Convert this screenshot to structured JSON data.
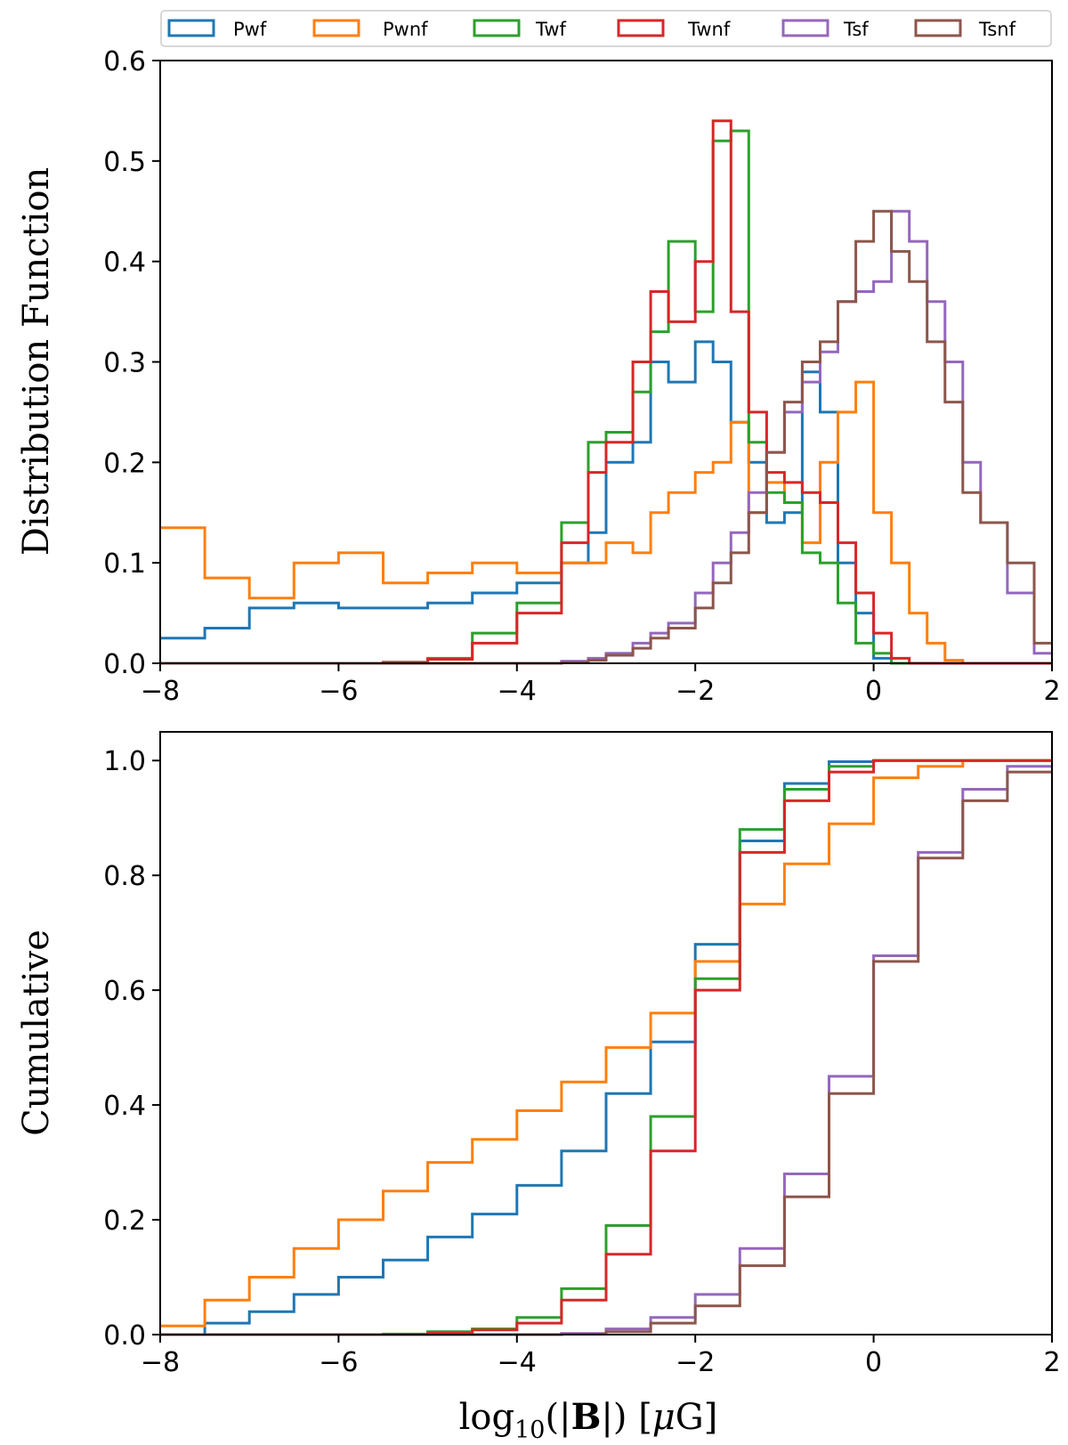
{
  "figure": {
    "legend": [
      {
        "name": "Pwf",
        "color": "#1f77b4"
      },
      {
        "name": "Pwnf",
        "color": "#ff7f0e"
      },
      {
        "name": "Twf",
        "color": "#2ca02c"
      },
      {
        "name": "Twnf",
        "color": "#d62728"
      },
      {
        "name": "Tsf",
        "color": "#9467bd"
      },
      {
        "name": "Tsnf",
        "color": "#8c564b"
      }
    ],
    "xlabel_pre": "log",
    "xlabel_sub": "10",
    "xlabel_open": "(|",
    "xlabel_bold": "B",
    "xlabel_close": "|) [",
    "xlabel_mu": "μ",
    "xlabel_unit": "G]"
  },
  "chart_data": [
    {
      "type": "line",
      "style": "step-histogram",
      "ylabel": "Distribution Function",
      "xlabel": "",
      "xlim": [
        -8,
        2
      ],
      "ylim": [
        0,
        0.6
      ],
      "xticks": [
        -8,
        -6,
        -4,
        -2,
        0,
        2
      ],
      "xtick_labels": [
        "−8",
        "−6",
        "−4",
        "−2",
        "0",
        "2"
      ],
      "yticks": [
        0,
        0.1,
        0.2,
        0.3,
        0.4,
        0.5,
        0.6
      ],
      "ytick_labels": [
        "0.0",
        "0.1",
        "0.2",
        "0.3",
        "0.4",
        "0.5",
        "0.6"
      ],
      "x": [
        -8.0,
        -7.5,
        -7.0,
        -6.5,
        -6.0,
        -5.5,
        -5.0,
        -4.5,
        -4.0,
        -3.5,
        -3.2,
        -3.0,
        -2.7,
        -2.5,
        -2.3,
        -2.0,
        -1.8,
        -1.6,
        -1.4,
        -1.2,
        -1.0,
        -0.8,
        -0.6,
        -0.4,
        -0.2,
        0.0,
        0.2,
        0.4,
        0.6,
        0.8,
        1.0,
        1.2,
        1.5,
        1.8,
        2.0
      ],
      "series": [
        {
          "name": "Pwf",
          "color": "#1f77b4",
          "values": [
            0.025,
            0.035,
            0.055,
            0.06,
            0.055,
            0.055,
            0.06,
            0.07,
            0.08,
            0.1,
            0.13,
            0.2,
            0.22,
            0.3,
            0.28,
            0.32,
            0.3,
            0.24,
            0.2,
            0.14,
            0.15,
            0.29,
            0.25,
            0.1,
            0.05,
            0.005,
            0.0,
            0.0,
            0.0,
            0.0,
            0.0,
            0.0,
            0.0,
            0.0,
            0.0
          ]
        },
        {
          "name": "Pwnf",
          "color": "#ff7f0e",
          "values": [
            0.135,
            0.085,
            0.065,
            0.1,
            0.11,
            0.08,
            0.09,
            0.1,
            0.09,
            0.1,
            0.1,
            0.12,
            0.11,
            0.15,
            0.17,
            0.19,
            0.2,
            0.24,
            0.15,
            0.18,
            0.16,
            0.12,
            0.2,
            0.25,
            0.28,
            0.15,
            0.1,
            0.05,
            0.02,
            0.003,
            0.0,
            0.0,
            0.0,
            0.0,
            0.0
          ]
        },
        {
          "name": "Twf",
          "color": "#2ca02c",
          "values": [
            0.0,
            0.0,
            0.0,
            0.0,
            0.0,
            0.001,
            0.005,
            0.03,
            0.06,
            0.14,
            0.22,
            0.23,
            0.27,
            0.33,
            0.42,
            0.35,
            0.52,
            0.53,
            0.22,
            0.17,
            0.16,
            0.11,
            0.1,
            0.06,
            0.02,
            0.01,
            0.0,
            0.0,
            0.0,
            0.0,
            0.0,
            0.0,
            0.0,
            0.0,
            0.0
          ]
        },
        {
          "name": "Twnf",
          "color": "#d62728",
          "values": [
            0.0,
            0.0,
            0.0,
            0.0,
            0.0,
            0.001,
            0.004,
            0.02,
            0.05,
            0.12,
            0.19,
            0.22,
            0.3,
            0.37,
            0.34,
            0.4,
            0.54,
            0.35,
            0.25,
            0.19,
            0.18,
            0.17,
            0.16,
            0.12,
            0.07,
            0.03,
            0.005,
            0.0,
            0.0,
            0.0,
            0.0,
            0.0,
            0.0,
            0.0,
            0.0
          ]
        },
        {
          "name": "Tsf",
          "color": "#9467bd",
          "values": [
            0.0,
            0.0,
            0.0,
            0.0,
            0.0,
            0.0,
            0.0,
            0.0,
            0.0,
            0.002,
            0.005,
            0.01,
            0.02,
            0.03,
            0.04,
            0.07,
            0.1,
            0.13,
            0.17,
            0.21,
            0.25,
            0.28,
            0.31,
            0.36,
            0.37,
            0.38,
            0.45,
            0.42,
            0.36,
            0.3,
            0.2,
            0.14,
            0.07,
            0.01,
            0.0
          ]
        },
        {
          "name": "Tsnf",
          "color": "#8c564b",
          "values": [
            0.0,
            0.0,
            0.0,
            0.0,
            0.0,
            0.0,
            0.0,
            0.0,
            0.0,
            0.001,
            0.003,
            0.008,
            0.015,
            0.025,
            0.035,
            0.055,
            0.08,
            0.11,
            0.15,
            0.21,
            0.26,
            0.3,
            0.32,
            0.36,
            0.42,
            0.45,
            0.41,
            0.38,
            0.32,
            0.26,
            0.17,
            0.14,
            0.1,
            0.02,
            0.0
          ]
        }
      ]
    },
    {
      "type": "line",
      "style": "step-cumulative",
      "ylabel": "Cumulative",
      "xlabel": "log10(|B|) [μG]",
      "xlim": [
        -8,
        2
      ],
      "ylim": [
        0,
        1.05
      ],
      "xticks": [
        -8,
        -6,
        -4,
        -2,
        0,
        2
      ],
      "xtick_labels": [
        "−8",
        "−6",
        "−4",
        "−2",
        "0",
        "2"
      ],
      "yticks": [
        0,
        0.2,
        0.4,
        0.6,
        0.8,
        1.0
      ],
      "ytick_labels": [
        "0.0",
        "0.2",
        "0.4",
        "0.6",
        "0.8",
        "1.0"
      ],
      "x": [
        -8.0,
        -7.5,
        -7.0,
        -6.5,
        -6.0,
        -5.5,
        -5.0,
        -4.5,
        -4.0,
        -3.5,
        -3.0,
        -2.5,
        -2.0,
        -1.5,
        -1.0,
        -0.5,
        0.0,
        0.5,
        1.0,
        1.5,
        2.0
      ],
      "series": [
        {
          "name": "Pwf",
          "color": "#1f77b4",
          "values": [
            0.0,
            0.02,
            0.04,
            0.07,
            0.1,
            0.13,
            0.17,
            0.21,
            0.26,
            0.32,
            0.42,
            0.51,
            0.68,
            0.86,
            0.96,
            0.998,
            1.0,
            1.0,
            1.0,
            1.0,
            1.0
          ]
        },
        {
          "name": "Pwnf",
          "color": "#ff7f0e",
          "values": [
            0.015,
            0.06,
            0.1,
            0.15,
            0.2,
            0.25,
            0.3,
            0.34,
            0.39,
            0.44,
            0.5,
            0.56,
            0.65,
            0.75,
            0.82,
            0.89,
            0.97,
            0.99,
            1.0,
            1.0,
            1.0
          ]
        },
        {
          "name": "Twf",
          "color": "#2ca02c",
          "values": [
            0.0,
            0.0,
            0.0,
            0.0,
            0.0,
            0.001,
            0.005,
            0.01,
            0.03,
            0.08,
            0.19,
            0.38,
            0.62,
            0.88,
            0.95,
            0.99,
            1.0,
            1.0,
            1.0,
            1.0,
            1.0
          ]
        },
        {
          "name": "Twnf",
          "color": "#d62728",
          "values": [
            0.0,
            0.0,
            0.0,
            0.0,
            0.0,
            0.0,
            0.003,
            0.008,
            0.02,
            0.06,
            0.14,
            0.32,
            0.6,
            0.84,
            0.93,
            0.98,
            1.0,
            1.0,
            1.0,
            1.0,
            1.0
          ]
        },
        {
          "name": "Tsf",
          "color": "#9467bd",
          "values": [
            0.0,
            0.0,
            0.0,
            0.0,
            0.0,
            0.0,
            0.0,
            0.0,
            0.0,
            0.002,
            0.01,
            0.03,
            0.07,
            0.15,
            0.28,
            0.45,
            0.66,
            0.84,
            0.95,
            0.99,
            1.0
          ]
        },
        {
          "name": "Tsnf",
          "color": "#8c564b",
          "values": [
            0.0,
            0.0,
            0.0,
            0.0,
            0.0,
            0.0,
            0.0,
            0.0,
            0.0,
            0.001,
            0.005,
            0.02,
            0.05,
            0.12,
            0.24,
            0.42,
            0.65,
            0.83,
            0.93,
            0.98,
            1.0
          ]
        }
      ]
    }
  ]
}
